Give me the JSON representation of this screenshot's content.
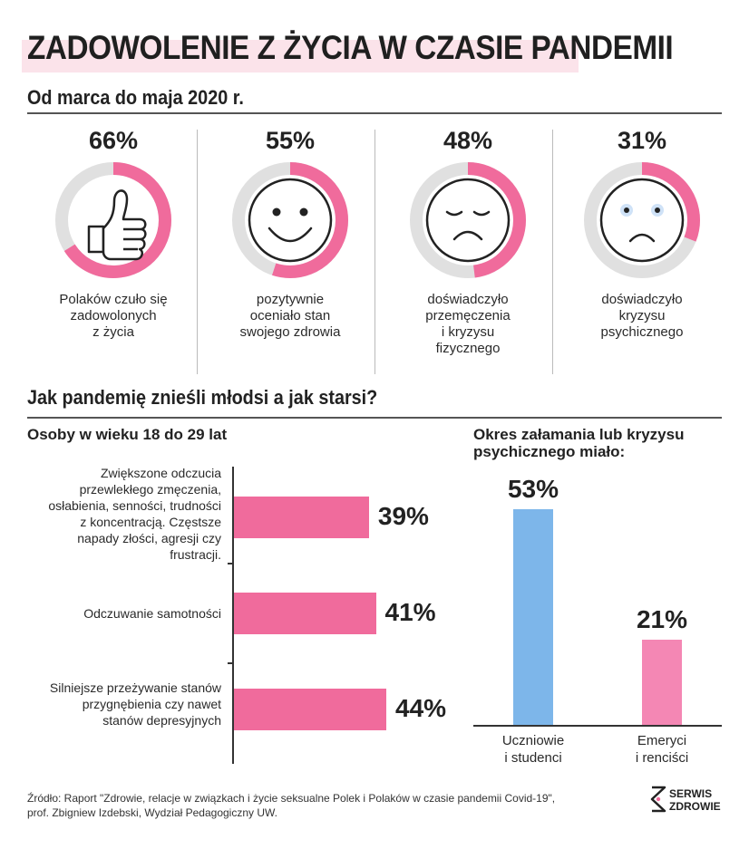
{
  "header": {
    "title": "ZADOWOLENIE  Z ŻYCIA W CZASIE PANDEMII",
    "subtitle": "Od marca do maja 2020 r."
  },
  "stats": [
    {
      "percent_label": "66%",
      "value": 66,
      "icon": "thumbs-up-icon",
      "description": "Polaków czuło się\nzadowolonych\nz życia"
    },
    {
      "percent_label": "55%",
      "value": 55,
      "icon": "smiley-face-icon",
      "description": "pozytywnie\noceniało stan\nswojego zdrowia"
    },
    {
      "percent_label": "48%",
      "value": 48,
      "icon": "sad-tired-face-icon",
      "description": "doświadczyło\nprzemęczenia\ni kryzysu\nfizycznego"
    },
    {
      "percent_label": "31%",
      "value": 31,
      "icon": "worried-face-icon",
      "description": "doświadczyło\nkryzysu\npsychicznego"
    }
  ],
  "section2": {
    "title": "Jak pandemię znieśli młodsi a jak starsi?",
    "left_subtitle": "Osoby w wieku 18 do 29 lat",
    "right_subtitle": "Okres załamania lub kryzysu\npsychicznego miało:"
  },
  "source": {
    "text": "Źródło: Raport \"Zdrowie, relacje w związkach i życie seksualne Polek i Polaków w czasie pandemii Covid-19\",\n              prof. Zbigniew Izdebski, Wydział Pedagogiczny UW."
  },
  "logo": {
    "text": "SERWIS\nZDROWIE"
  },
  "colors": {
    "pink": "#f06b9c",
    "light_pink": "#f487b4",
    "blue": "#7db6ea",
    "ring_gray": "#e0e0e0",
    "title_band": "#fbe3ea"
  },
  "chart_data": [
    {
      "type": "bar",
      "orientation": "horizontal",
      "categories": [
        "Zwiększone odczucia\nprzewlekłego zmęczenia,\nosłabienia, senności, trudności\nz koncentracją. Częstsze\nnapady złości, agresji czy\nfrustracji.",
        "Odczuwanie samotności",
        "Silniejsze przeżywanie stanów\nprzygnębienia czy nawet\nstanów depresyjnych"
      ],
      "values": [
        39,
        41,
        44
      ],
      "value_labels": [
        "39%",
        "41%",
        "44%"
      ]
    },
    {
      "type": "bar",
      "orientation": "vertical",
      "categories": [
        "Uczniowie\ni studenci",
        "Emeryci\ni renciści"
      ],
      "values": [
        53,
        21
      ],
      "value_labels": [
        "53%",
        "21%"
      ],
      "colors": [
        "#7db6ea",
        "#f487b4"
      ]
    }
  ]
}
